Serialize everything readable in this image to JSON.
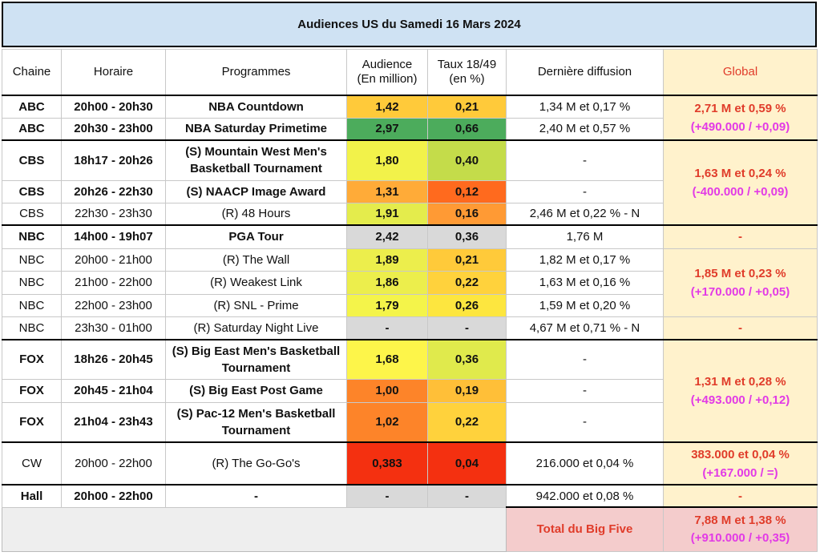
{
  "title": "Audiences US du Samedi 16 Mars 2024",
  "colors": {
    "title_bg": "#cfe2f3",
    "global_bg": "#fff2cc",
    "global_text": "#e03c2a",
    "delta_text": "#e23ae6",
    "footer_bg": "#f4cccc",
    "na_bg": "#d9d9d9"
  },
  "headers": {
    "chaine": "Chaine",
    "horaire": "Horaire",
    "programmes": "Programmes",
    "audience_l1": "Audience",
    "audience_l2": "(En million)",
    "taux_l1": "Taux 18/49",
    "taux_l2": "(en %)",
    "derniere": "Dernière diffusion",
    "global": "Global"
  },
  "rows": [
    {
      "chaine": "ABC",
      "horaire": "20h00 - 20h30",
      "programme": "NBA Countdown",
      "audience": "1,42",
      "taux": "0,21",
      "derniere": "1,34 M et 0,17 %",
      "audience_color": "#ffca3a",
      "taux_color": "#ffca3a"
    },
    {
      "chaine": "ABC",
      "horaire": "20h30 - 23h00",
      "programme": "NBA Saturday Primetime",
      "audience": "2,97",
      "taux": "0,66",
      "derniere": "2,40 M et 0,57 %",
      "audience_color": "#4cac5c",
      "taux_color": "#4cac5c"
    },
    {
      "chaine": "CBS",
      "horaire": "18h17 - 20h26",
      "programme": "(S) Mountain West Men's Basketball Tournament",
      "audience": "1,80",
      "taux": "0,40",
      "derniere": "-",
      "audience_color": "#f2f24a",
      "taux_color": "#c4dc4a"
    },
    {
      "chaine": "CBS",
      "horaire": "20h26 - 22h30",
      "programme": "(S) NAACP Image Award",
      "audience": "1,31",
      "taux": "0,12",
      "derniere": "-",
      "audience_color": "#ffab38",
      "taux_color": "#ff6a1e"
    },
    {
      "chaine": "CBS",
      "horaire": "22h30 - 23h30",
      "programme": "(R) 48 Hours",
      "audience": "1,91",
      "taux": "0,16",
      "derniere": "2,46 M et 0,22 % - N",
      "audience_color": "#e4ec4c",
      "taux_color": "#ff9a34"
    },
    {
      "chaine": "NBC",
      "horaire": "14h00 - 19h07",
      "programme": "PGA Tour",
      "audience": "2,42",
      "taux": "0,36",
      "derniere": "1,76 M",
      "audience_color": "#d9d9d9",
      "taux_color": "#d9d9d9"
    },
    {
      "chaine": "NBC",
      "horaire": "20h00 - 21h00",
      "programme": "(R) The Wall",
      "audience": "1,89",
      "taux": "0,21",
      "derniere": "1,82 M et 0,17 %",
      "audience_color": "#ecee4c",
      "taux_color": "#ffca3a"
    },
    {
      "chaine": "NBC",
      "horaire": "21h00 - 22h00",
      "programme": "(R) Weakest Link",
      "audience": "1,86",
      "taux": "0,22",
      "derniere": "1,63 M et 0,16 %",
      "audience_color": "#ecee4c",
      "taux_color": "#ffd23c"
    },
    {
      "chaine": "NBC",
      "horaire": "22h00 - 23h00",
      "programme": "(R) SNL - Prime",
      "audience": "1,79",
      "taux": "0,26",
      "derniere": "1,59 M et 0,20 %",
      "audience_color": "#f4f44a",
      "taux_color": "#fde63f"
    },
    {
      "chaine": "NBC",
      "horaire": "23h30 - 01h00",
      "programme": "(R) Saturday Night Live",
      "audience": "-",
      "taux": "-",
      "derniere": "4,67 M et 0,71 % - N",
      "audience_color": "#d9d9d9",
      "taux_color": "#d9d9d9"
    },
    {
      "chaine": "FOX",
      "horaire": "18h26 - 20h45",
      "programme": "(S) Big East Men's Basketball Tournament",
      "audience": "1,68",
      "taux": "0,36",
      "derniere": "-",
      "audience_color": "#fdf54a",
      "taux_color": "#e0ea4c"
    },
    {
      "chaine": "FOX",
      "horaire": "20h45 - 21h04",
      "programme": "(S) Big East Post Game",
      "audience": "1,00",
      "taux": "0,19",
      "derniere": "-",
      "audience_color": "#fd8429",
      "taux_color": "#ffbf38"
    },
    {
      "chaine": "FOX",
      "horaire": "21h04 - 23h43",
      "programme": "(S) Pac-12 Men's Basketball Tournament",
      "audience": "1,02",
      "taux": "0,22",
      "derniere": "-",
      "audience_color": "#fd8429",
      "taux_color": "#ffd23c"
    },
    {
      "chaine": "CW",
      "horaire": "20h00 - 22h00",
      "programme": "(R) The Go-Go's",
      "audience": "0,383",
      "taux": "0,04",
      "derniere": "216.000 et 0,04 %",
      "audience_color": "#f43010",
      "taux_color": "#f43010"
    },
    {
      "chaine": "Hall",
      "horaire": "20h00 - 22h00",
      "programme": "-",
      "audience": "-",
      "taux": "-",
      "derniere": "942.000 et 0,08 %",
      "audience_color": "#d9d9d9",
      "taux_color": "#d9d9d9"
    }
  ],
  "globals": {
    "abc": {
      "line1": "2,71 M et 0,59 %",
      "line2": "(+490.000 / +0,09)"
    },
    "cbs": {
      "line1": "1,63 M et 0,24 %",
      "line2": "(-400.000 / +0,09)"
    },
    "nbc_pga": {
      "line1": "-"
    },
    "nbc_prime": {
      "line1": "1,85 M et 0,23 %",
      "line2": "(+170.000 / +0,05)"
    },
    "nbc_snl": {
      "line1": "-"
    },
    "fox": {
      "line1": "1,31 M et 0,28 %",
      "line2": "(+493.000 / +0,12)"
    },
    "cw": {
      "line1": "383.000 et 0,04 %",
      "line2": "(+167.000 / =)"
    },
    "hall": {
      "line1": "-"
    }
  },
  "footer": {
    "label": "Total du Big Five",
    "line1": "7,88 M et 1,38 %",
    "line2": "(+910.000 / +0,35)"
  }
}
